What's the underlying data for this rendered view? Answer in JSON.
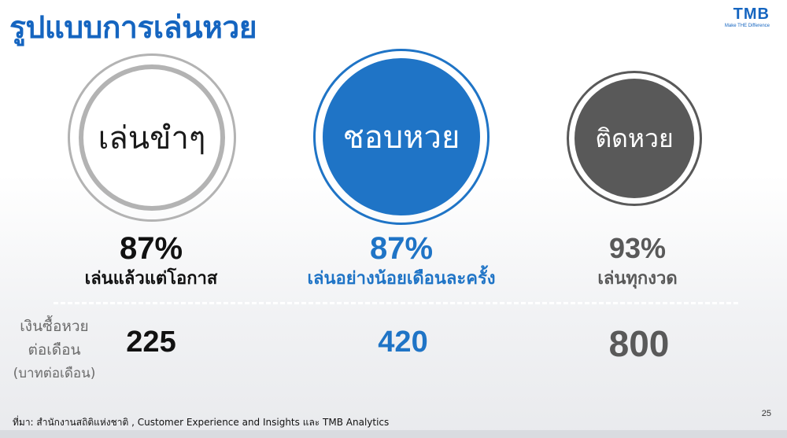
{
  "title": "รูปแบบการเล่นหวย",
  "logo": {
    "mark": "TMB",
    "tagline": "Make THE Difference"
  },
  "circles": [
    {
      "label": "เล่นขำๆ",
      "percent": "87%",
      "description": "เล่นแล้วแต่โอกาส",
      "amount": "225",
      "color": "#1a1a1a"
    },
    {
      "label": "ชอบหวย",
      "percent": "87%",
      "description": "เล่นอย่างน้อยเดือนละครั้ง",
      "amount": "420",
      "color": "#1f74c6"
    },
    {
      "label": "ติดหวย",
      "percent": "93%",
      "description": "เล่นทุกงวด",
      "amount": "800",
      "color": "#595959"
    }
  ],
  "spend_label": {
    "line1": "เงินซื้อหวย",
    "line2": "ต่อเดือน",
    "line3": "(บาทต่อเดือน)"
  },
  "source": "ที่มา: สำนักงานสถิติแห่งชาติ , Customer Experience and Insights และ TMB Analytics",
  "page_number": "25"
}
